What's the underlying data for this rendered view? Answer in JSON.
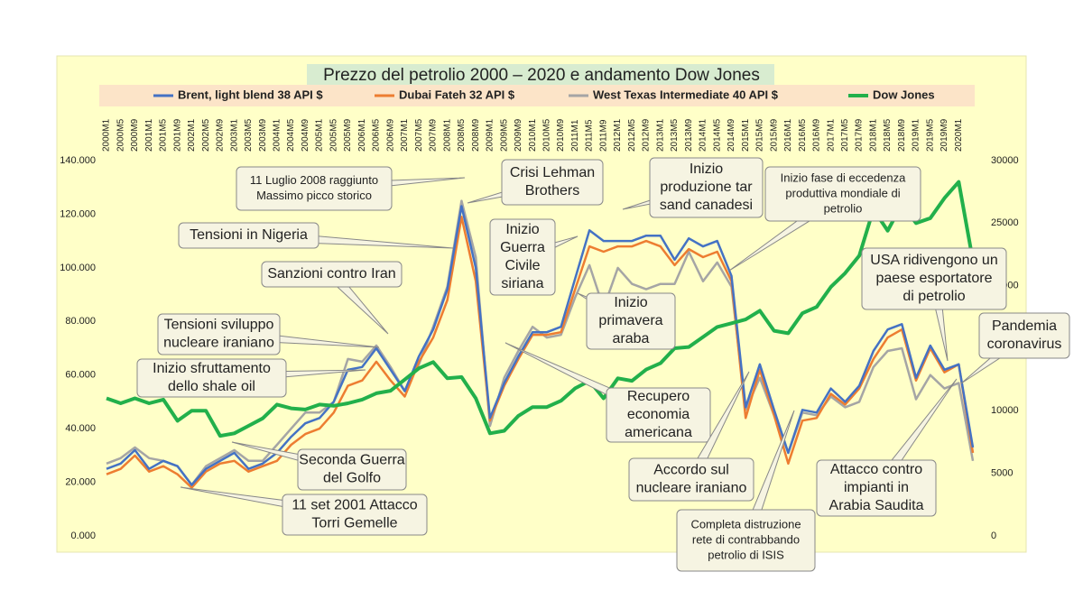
{
  "chart_data": {
    "type": "line",
    "title": "Prezzo del petrolio 2000 – 2020 e  andamento Dow Jones",
    "categories": [
      "2000M1",
      "2000M5",
      "2000M9",
      "2001M1",
      "2001M5",
      "2001M9",
      "2002M1",
      "2002M5",
      "2002M9",
      "2003M1",
      "2003M5",
      "2003M9",
      "2004M1",
      "2004M5",
      "2004M9",
      "2005M1",
      "2005M5",
      "2005M9",
      "2006M1",
      "2006M5",
      "2006M9",
      "2007M1",
      "2007M5",
      "2007M9",
      "2008M1",
      "2008M5",
      "2008M9",
      "2009M1",
      "2009M5",
      "2009M9",
      "2010M1",
      "2010M5",
      "2010M9",
      "2011M1",
      "2011M5",
      "2011M9",
      "2012M1",
      "2012M5",
      "2012M9",
      "2013M1",
      "2013M5",
      "2013M9",
      "2014M1",
      "2014M5",
      "2014M9",
      "2015M1",
      "2015M5",
      "2015M9",
      "2016M1",
      "2016M5",
      "2016M9",
      "2017M1",
      "2017M5",
      "2017M9",
      "2018M1",
      "2018M5",
      "2018M9",
      "2019M1",
      "2019M5",
      "2019M9",
      "2020M1",
      null
    ],
    "series": [
      {
        "name": "Brent, light blend 38 API  $",
        "color": "#4472c4",
        "values": [
          25,
          27,
          32,
          25,
          28,
          26,
          19,
          25,
          28,
          31,
          25,
          27,
          31,
          37,
          42,
          44,
          50,
          62,
          63,
          70,
          62,
          54,
          67,
          77,
          92,
          123,
          100,
          44,
          57,
          67,
          76,
          76,
          78,
          96,
          114,
          110,
          110,
          110,
          112,
          112,
          103,
          111,
          108,
          110,
          97,
          48,
          64,
          47,
          31,
          47,
          46,
          55,
          50,
          56,
          69,
          77,
          79,
          59,
          71,
          62,
          64,
          33
        ]
      },
      {
        "name": "Dubai Fateh  32 API  $",
        "color": "#ed7d31",
        "values": [
          23,
          25,
          30,
          24,
          26,
          23,
          18,
          24,
          27,
          28,
          24,
          26,
          28,
          34,
          38,
          40,
          46,
          56,
          58,
          65,
          58,
          52,
          65,
          74,
          88,
          119,
          95,
          43,
          56,
          66,
          75,
          75,
          76,
          92,
          108,
          106,
          108,
          108,
          110,
          108,
          101,
          107,
          104,
          106,
          95,
          44,
          62,
          45,
          27,
          43,
          44,
          53,
          49,
          55,
          66,
          74,
          77,
          58,
          70,
          61,
          64,
          31
        ]
      },
      {
        "name": "West Texas Intermediate 40 API $",
        "color": "#a5a5a5",
        "values": [
          27,
          29,
          33,
          29,
          28,
          26,
          19,
          26,
          29,
          32,
          28,
          28,
          34,
          40,
          46,
          46,
          50,
          66,
          65,
          71,
          63,
          54,
          64,
          78,
          93,
          125,
          104,
          41,
          59,
          69,
          78,
          74,
          75,
          89,
          101,
          85,
          100,
          94,
          92,
          94,
          94,
          106,
          95,
          102,
          93,
          47,
          59,
          45,
          31,
          46,
          45,
          52,
          48,
          50,
          63,
          69,
          70,
          51,
          60,
          55,
          57,
          28
        ]
      },
      {
        "name": "Dow Jones",
        "color": "#22b04b",
        "axis": "y2",
        "values": [
          11000,
          10600,
          11000,
          10600,
          10900,
          9200,
          10000,
          10000,
          8000,
          8200,
          8800,
          9400,
          10500,
          10200,
          10100,
          10500,
          10400,
          10600,
          10900,
          11400,
          11600,
          12500,
          13400,
          13900,
          12600,
          12700,
          11000,
          8200,
          8400,
          9600,
          10300,
          10300,
          10800,
          11800,
          12400,
          11000,
          12600,
          12400,
          13300,
          13800,
          15000,
          15100,
          15900,
          16700,
          17000,
          17300,
          18000,
          16400,
          16200,
          17800,
          18300,
          19900,
          21000,
          22400,
          26100,
          24400,
          26500,
          25000,
          25400,
          27000,
          28300,
          22000
        ]
      }
    ],
    "ylim": [
      0,
      140
    ],
    "yticks": [
      {
        "value": 0,
        "label": "0.000"
      },
      {
        "value": 20,
        "label": "20.000"
      },
      {
        "value": 40,
        "label": "40.000"
      },
      {
        "value": 60,
        "label": "60.000"
      },
      {
        "value": 80,
        "label": "80.000"
      },
      {
        "value": 100,
        "label": "100.000"
      },
      {
        "value": 120,
        "label": "120.000"
      },
      {
        "value": 140,
        "label": "140.000"
      }
    ],
    "y2lim": [
      0,
      30000
    ],
    "y2ticks": [
      0,
      5000,
      10000,
      15000,
      20000,
      25000,
      30000
    ],
    "legend": "top",
    "annotations": [
      {
        "lines": [
          "11 Luglio 2008 raggiunto",
          "Massimo picco storico"
        ]
      },
      {
        "lines": [
          "Crisi Lehman",
          "Brothers"
        ]
      },
      {
        "lines": [
          "Inizio",
          "produzione tar",
          "sand canadesi"
        ]
      },
      {
        "lines": [
          "Inizio fase di eccedenza",
          "produttiva mondiale di",
          "petrolio"
        ]
      },
      {
        "lines": [
          "Tensioni in Nigeria"
        ]
      },
      {
        "lines": [
          "Inizio",
          "Guerra",
          "Civile",
          "siriana"
        ]
      },
      {
        "lines": [
          "Sanzioni contro Iran"
        ]
      },
      {
        "lines": [
          "Inizio",
          "primavera",
          "araba"
        ]
      },
      {
        "lines": [
          "USA ridivengono un",
          "paese esportatore",
          "di petrolio"
        ]
      },
      {
        "lines": [
          "Tensioni sviluppo",
          "nucleare iraniano"
        ]
      },
      {
        "lines": [
          "Pandemia",
          "coronavirus"
        ]
      },
      {
        "lines": [
          "Inizio sfruttamento",
          "dello shale oil"
        ]
      },
      {
        "lines": [
          "Recupero",
          "economia",
          "americana"
        ]
      },
      {
        "lines": [
          "Seconda Guerra",
          "del Golfo"
        ]
      },
      {
        "lines": [
          "Accordo sul",
          "nucleare iraniano"
        ]
      },
      {
        "lines": [
          "Attacco contro",
          "impianti in",
          "Arabia Saudita"
        ]
      },
      {
        "lines": [
          "11 set 2001 Attacco",
          "Torri Gemelle"
        ]
      },
      {
        "lines": [
          "Completa distruzione",
          "rete di contrabbando",
          "petrolio di ISIS"
        ]
      }
    ]
  }
}
